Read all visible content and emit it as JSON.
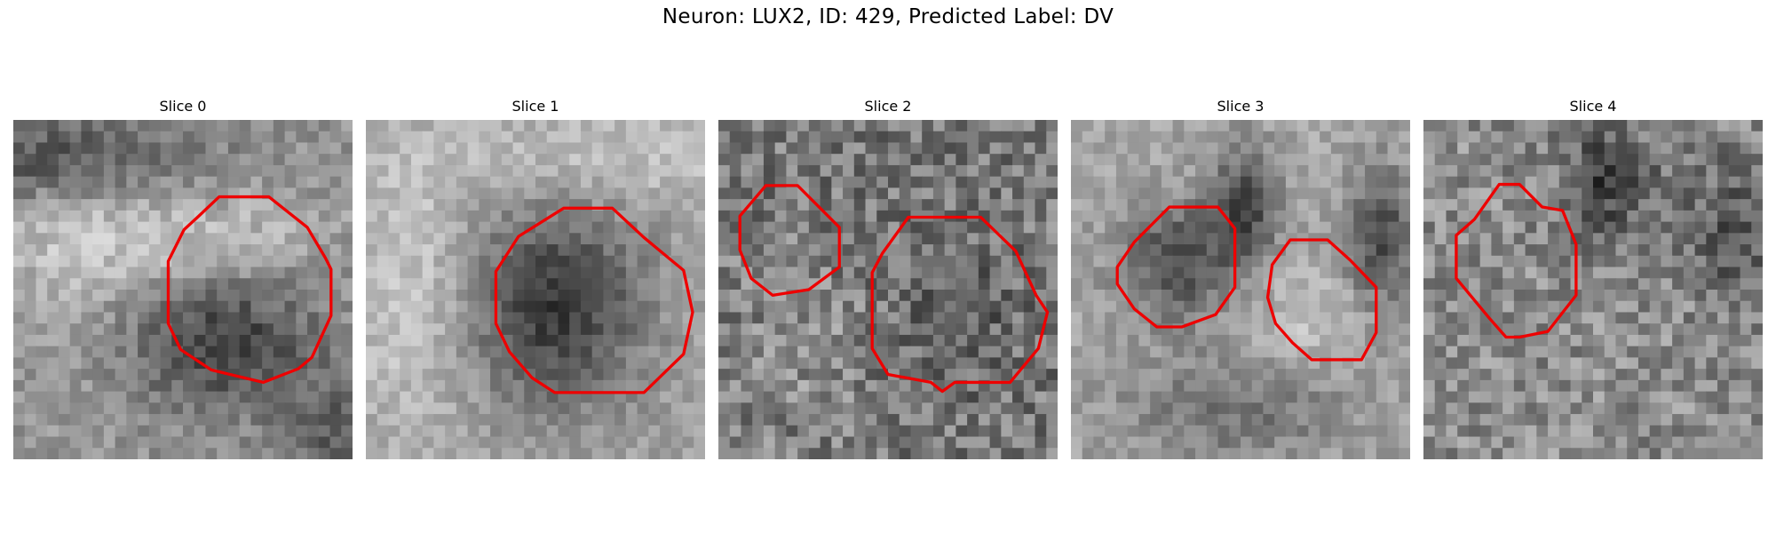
{
  "figure": {
    "title": "Neuron: LUX2, ID: 429, Predicted Label: DV",
    "outline_color": "#ee0000"
  },
  "panels": [
    {
      "title": "Slice 0"
    },
    {
      "title": "Slice 1"
    },
    {
      "title": "Slice 2"
    },
    {
      "title": "Slice 3"
    },
    {
      "title": "Slice 4"
    }
  ]
}
